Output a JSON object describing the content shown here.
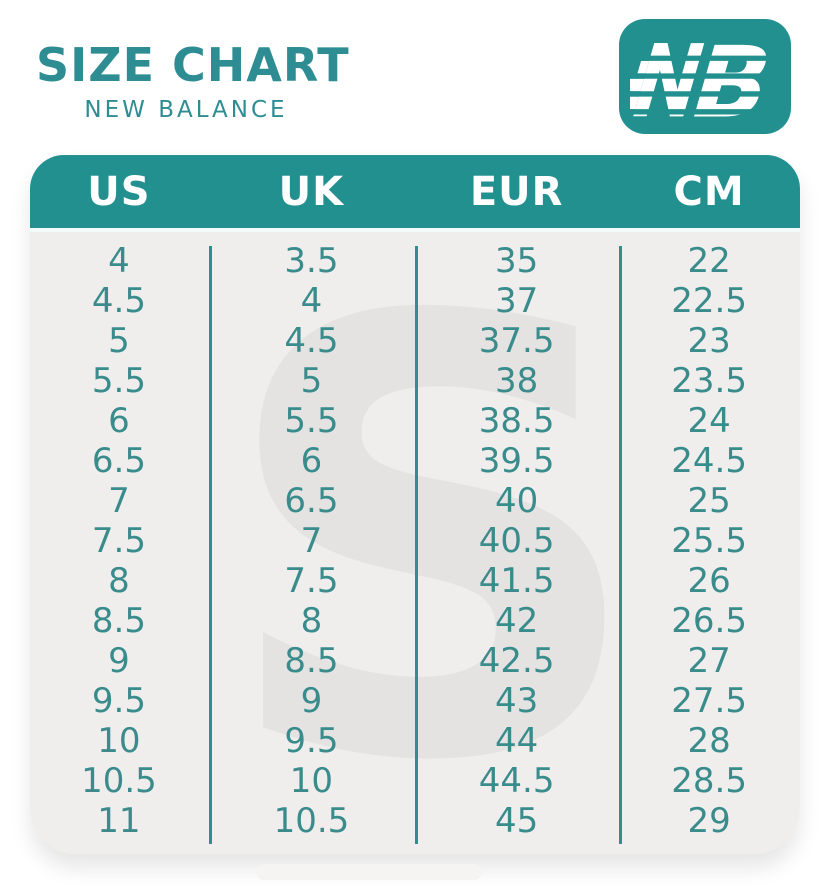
{
  "header": {
    "title": "SIZE CHART",
    "subtitle": "NEW BALANCE",
    "logo": "new-balance-nb-mark"
  },
  "colors": {
    "teal": "#21908f",
    "title_teal": "#2e8d92",
    "cell_teal": "#3a8c8c",
    "body_bg": "#efeeec",
    "watermark_gray": "#e4e3e1"
  },
  "watermark": {
    "glyph": "S"
  },
  "table": {
    "columns": [
      "US",
      "UK",
      "EUR",
      "CM"
    ],
    "rows": [
      [
        "4",
        "3.5",
        "35",
        "22"
      ],
      [
        "4.5",
        "4",
        "37",
        "22.5"
      ],
      [
        "5",
        "4.5",
        "37.5",
        "23"
      ],
      [
        "5.5",
        "5",
        "38",
        "23.5"
      ],
      [
        "6",
        "5.5",
        "38.5",
        "24"
      ],
      [
        "6.5",
        "6",
        "39.5",
        "24.5"
      ],
      [
        "7",
        "6.5",
        "40",
        "25"
      ],
      [
        "7.5",
        "7",
        "40.5",
        "25.5"
      ],
      [
        "8",
        "7.5",
        "41.5",
        "26"
      ],
      [
        "8.5",
        "8",
        "42",
        "26.5"
      ],
      [
        "9",
        "8.5",
        "42.5",
        "27"
      ],
      [
        "9.5",
        "9",
        "43",
        "27.5"
      ],
      [
        "10",
        "9.5",
        "44",
        "28"
      ],
      [
        "10.5",
        "10",
        "44.5",
        "28.5"
      ],
      [
        "11",
        "10.5",
        "45",
        "29"
      ]
    ]
  }
}
